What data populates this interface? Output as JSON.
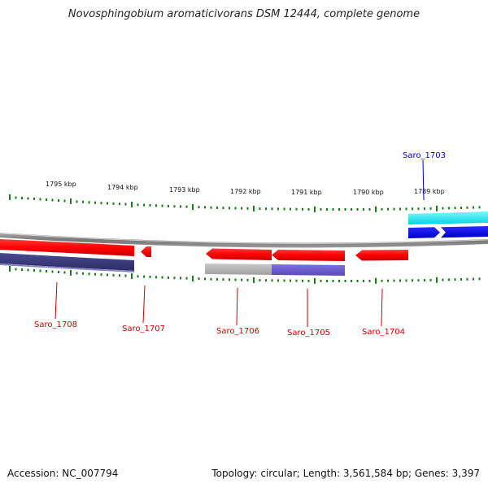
{
  "title": "Novosphingobium aromaticivorans DSM 12444, complete genome",
  "footer": {
    "accession": "Accession: NC_007794",
    "summary": "Topology: circular; Length: 3,561,584 bp; Genes: 3,397"
  },
  "ruler": [
    {
      "label": "1795 kbp"
    },
    {
      "label": "1794 kbp"
    },
    {
      "label": "1793 kbp"
    },
    {
      "label": "1792 kbp"
    },
    {
      "label": "1791 kbp"
    },
    {
      "label": "1790 kbp"
    },
    {
      "label": "1789 kbp"
    }
  ],
  "genes": [
    {
      "name": "Saro_1708",
      "color": "#cc0000"
    },
    {
      "name": "Saro_1707",
      "color": "#cc0000"
    },
    {
      "name": "Saro_1706",
      "color": "#cc0000"
    },
    {
      "name": "Saro_1705",
      "color": "#cc0000"
    },
    {
      "name": "Saro_1704",
      "color": "#cc0000"
    },
    {
      "name": "Saro_1703",
      "color": "#0000cc"
    }
  ],
  "colors": {
    "gene_fill": "#ff0000",
    "gene_blue": "#0000ee",
    "cyan": "#00e5ee",
    "purple_dark": "#3a3a7a",
    "purple_light": "#6a5acd",
    "gray_feature": "#b0b0b0",
    "backbone": "#888888",
    "tick": "#1a7a1a"
  }
}
